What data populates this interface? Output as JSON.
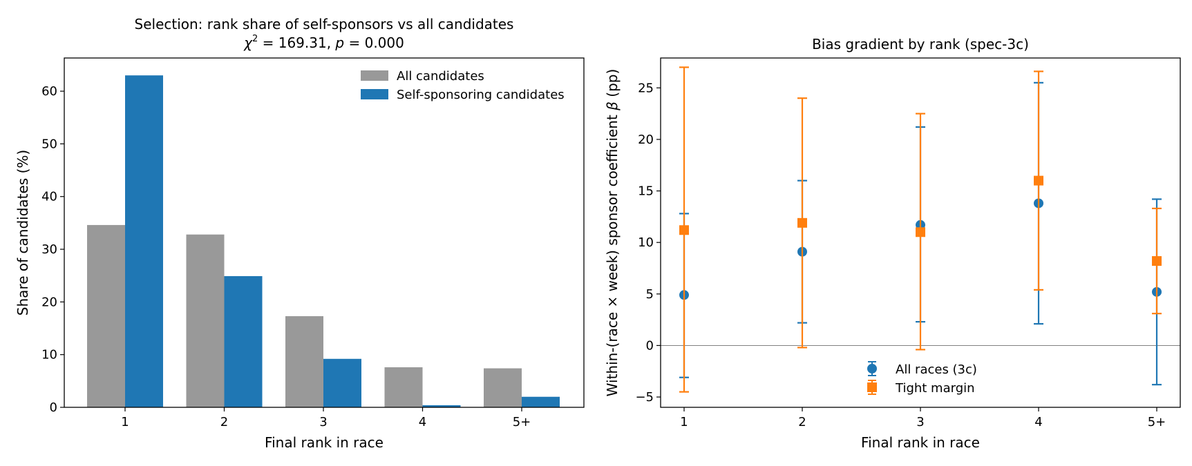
{
  "chart_data": [
    {
      "type": "bar",
      "title": "Selection: rank share of self-sponsors vs all candidates",
      "subtitle": {
        "prefix": "χ",
        "sup": "2",
        "mid": " = 169.31, ",
        "pvar": "p",
        "suffix": " = 0.000"
      },
      "xlabel": "Final rank in race",
      "ylabel": "Share of candidates (%)",
      "ylim": [
        0,
        66.3
      ],
      "yticks": [
        "0",
        "10",
        "20",
        "30",
        "40",
        "50",
        "60"
      ],
      "grid": false,
      "legend_position": "top-right",
      "categories": [
        "1",
        "2",
        "3",
        "4",
        "5+"
      ],
      "series": [
        {
          "name": "All candidates",
          "color": "#999999",
          "values": [
            34.6,
            32.8,
            17.3,
            7.6,
            7.4
          ]
        },
        {
          "name": "Self-sponsoring candidates",
          "color": "#1f77b4",
          "values": [
            63.0,
            24.9,
            9.2,
            0.4,
            2.0
          ]
        }
      ]
    },
    {
      "type": "scatter",
      "title": "Bias gradient by rank (spec-3c)",
      "xlabel": "Final rank in race",
      "ylabel": {
        "prefix": "Within-(race × week) sponsor coefficient ",
        "var": "β",
        "suffix": " (pp)"
      },
      "ylim": [
        -6.0,
        27.9
      ],
      "yticks": [
        "−5",
        "0",
        "5",
        "10",
        "15",
        "20",
        "25"
      ],
      "reference_line": 0,
      "grid": false,
      "legend_position": "bottom-center",
      "categories": [
        "1",
        "2",
        "3",
        "4",
        "5+"
      ],
      "series": [
        {
          "name": "All races (3c)",
          "color": "#1f77b4",
          "marker": "circle",
          "values": [
            4.9,
            9.1,
            11.7,
            13.8,
            5.2
          ],
          "ci_low": [
            -3.1,
            2.2,
            2.3,
            2.1,
            -3.8
          ],
          "ci_high": [
            12.8,
            16.0,
            21.2,
            25.5,
            14.2
          ]
        },
        {
          "name": "Tight margin",
          "color": "#ff7f0e",
          "marker": "square",
          "values": [
            11.2,
            11.9,
            11.0,
            16.0,
            8.2
          ],
          "ci_low": [
            -4.5,
            -0.2,
            -0.4,
            5.4,
            3.1
          ],
          "ci_high": [
            27.0,
            24.0,
            22.5,
            26.6,
            13.3
          ]
        }
      ]
    }
  ]
}
